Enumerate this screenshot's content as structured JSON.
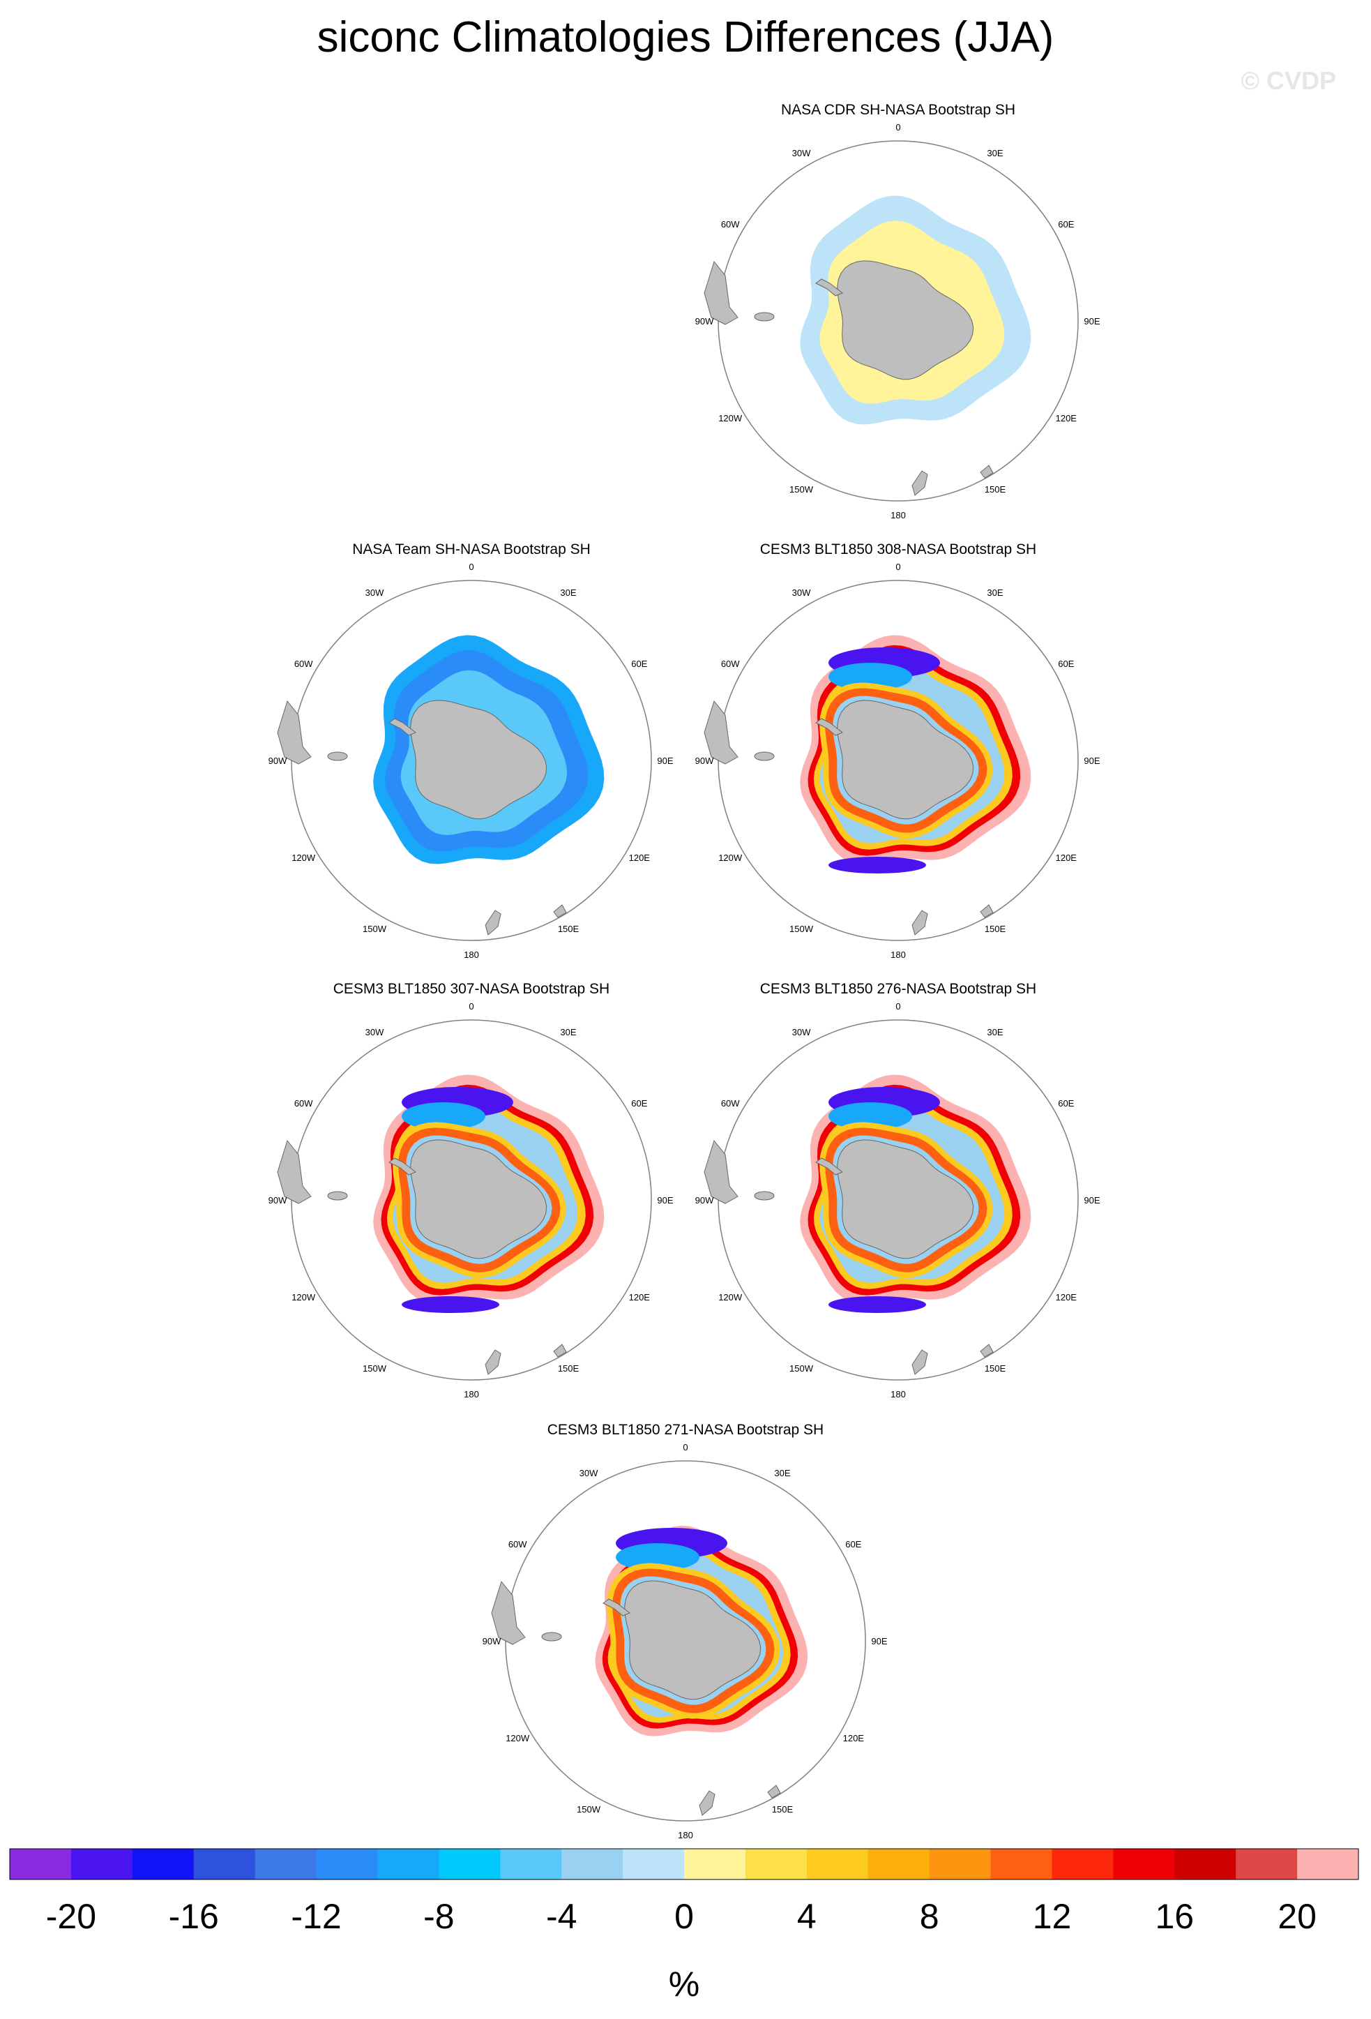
{
  "page": {
    "title": "siconc Climatologies Differences (JJA)",
    "copyright": "© CVDP"
  },
  "chart_data": [
    {
      "type": "heatmap",
      "title": "NASA CDR SH-NASA Bootstrap SH",
      "projection": "south-polar-stereographic",
      "longitude_labels": [
        "0",
        "30E",
        "60E",
        "90E",
        "120E",
        "150E",
        "180",
        "150W",
        "120W",
        "90W",
        "60W",
        "30W"
      ],
      "field_pattern": "uniform small difference: 0 to 2 near Antarctic coast, 0 to -2 toward ice edge"
    },
    {
      "type": "heatmap",
      "title": "NASA Team SH-NASA Bootstrap SH",
      "projection": "south-polar-stereographic",
      "longitude_labels": [
        "0",
        "30E",
        "60E",
        "90E",
        "120E",
        "150E",
        "180",
        "150W",
        "120W",
        "90W",
        "60W",
        "30W"
      ],
      "field_pattern": "negative differences throughout pack ice, about -6 to -14"
    },
    {
      "type": "heatmap",
      "title": "CESM3 BLT1850 308-NASA Bootstrap SH",
      "projection": "south-polar-stereographic",
      "longitude_labels": [
        "0",
        "30E",
        "60E",
        "90E",
        "120E",
        "150E",
        "180",
        "150W",
        "120W",
        "90W",
        "60W",
        "30W"
      ],
      "field_pattern": "positive 8 to 20 near coast and outer edge, negative -16 to -22 in Weddell and Ross seas"
    },
    {
      "type": "heatmap",
      "title": "CESM3 BLT1850 307-NASA Bootstrap SH",
      "projection": "south-polar-stereographic",
      "longitude_labels": [
        "0",
        "30E",
        "60E",
        "90E",
        "120E",
        "150E",
        "180",
        "150W",
        "120W",
        "90W",
        "60W",
        "30W"
      ],
      "field_pattern": "positive 8 to 20 near coast and outer edge, negative -16 to -22 in Weddell and Ross seas"
    },
    {
      "type": "heatmap",
      "title": "CESM3 BLT1850 276-NASA Bootstrap SH",
      "projection": "south-polar-stereographic",
      "longitude_labels": [
        "0",
        "30E",
        "60E",
        "90E",
        "120E",
        "150E",
        "180",
        "150W",
        "120W",
        "90W",
        "60W",
        "30W"
      ],
      "field_pattern": "positive 8 to 20 near coast and outer edge, negative -16 to -22 in Weddell sea"
    },
    {
      "type": "heatmap",
      "title": "CESM3 BLT1850 271-NASA Bootstrap SH",
      "projection": "south-polar-stereographic",
      "longitude_labels": [
        "0",
        "30E",
        "60E",
        "90E",
        "120E",
        "150E",
        "180",
        "150W",
        "120W",
        "90W",
        "60W",
        "30W"
      ],
      "field_pattern": "positive 8 to 20 near coast and outer edge, negative -16 to -22 in Weddell sea"
    }
  ],
  "colorbar": {
    "unit": "%",
    "tick_labels": [
      "-20",
      "-16",
      "-12",
      "-8",
      "-4",
      "0",
      "4",
      "8",
      "12",
      "16",
      "20"
    ],
    "colors": [
      "#8a2be2",
      "#4a14f0",
      "#1212f6",
      "#2e52de",
      "#3c78e6",
      "#2a8cf8",
      "#18a8fa",
      "#00c8fa",
      "#5ac8f8",
      "#9ad0f0",
      "#bde3f8",
      "#fff49a",
      "#fde048",
      "#fdca20",
      "#fdb00c",
      "#fd9410",
      "#fd6010",
      "#fd280c",
      "#f00004",
      "#ce0000",
      "#e04848",
      "#fdb2b2"
    ]
  }
}
